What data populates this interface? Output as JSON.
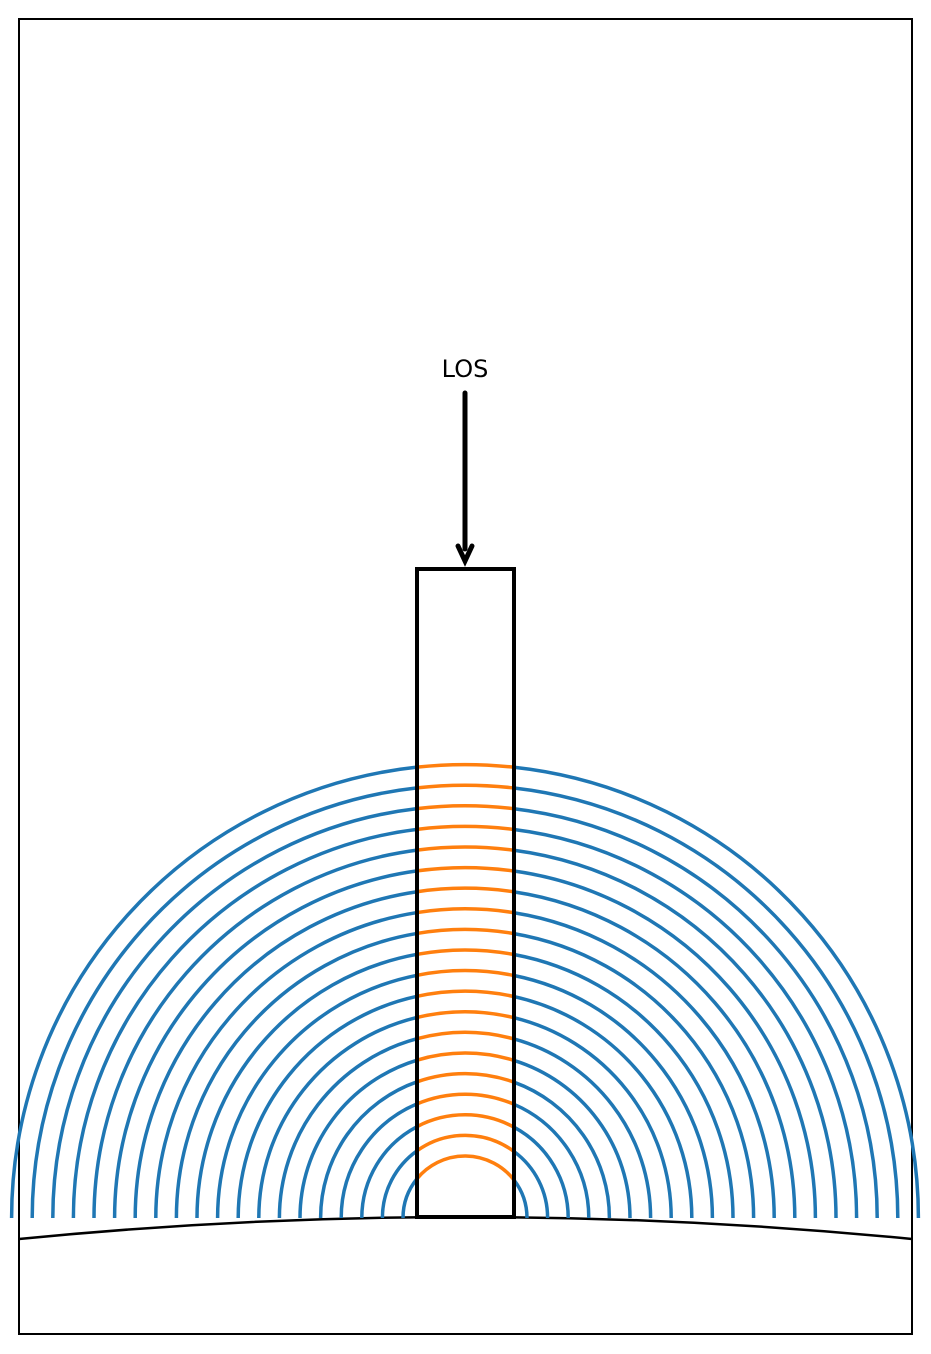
{
  "diagram": {
    "los_label": "LOS",
    "shell_count": 20,
    "colors": {
      "shell_outside": "#1f77b4",
      "shell_inside_column": "#ff7f0e",
      "column_outline": "#000000",
      "arrow": "#000000",
      "surface": "#000000",
      "frame": "#000000"
    }
  }
}
